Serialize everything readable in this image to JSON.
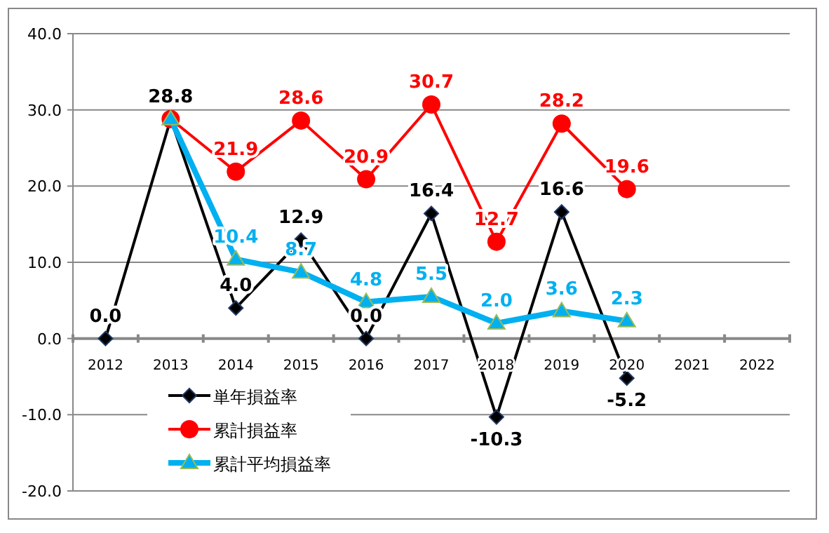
{
  "chart_data": {
    "type": "line",
    "categories": [
      "2012",
      "2013",
      "2014",
      "2015",
      "2016",
      "2017",
      "2018",
      "2019",
      "2020",
      "2021",
      "2022"
    ],
    "series": [
      {
        "name": "単年損益率",
        "color": "#000000",
        "marker": "diamond",
        "values": [
          0.0,
          28.8,
          4.0,
          12.9,
          0.0,
          16.4,
          -10.3,
          16.6,
          -5.2,
          null,
          null
        ],
        "value_labels": [
          "0.0",
          "28.8",
          "4.0",
          "12.9",
          "0.0",
          "16.4",
          "-10.3",
          "16.6",
          "-5.2",
          null,
          null
        ]
      },
      {
        "name": "累計損益率",
        "color": "#ff0000",
        "marker": "circle",
        "values": [
          null,
          28.8,
          21.9,
          28.6,
          20.9,
          30.7,
          12.7,
          28.2,
          19.6,
          null,
          null
        ],
        "value_labels": [
          null,
          null,
          "21.9",
          "28.6",
          "20.9",
          "30.7",
          "12.7",
          "28.2",
          "19.6",
          null,
          null
        ]
      },
      {
        "name": "累計平均損益率",
        "color": "#00b0f0",
        "marker": "triangle",
        "values": [
          null,
          28.8,
          10.4,
          8.7,
          4.8,
          5.5,
          2.0,
          3.6,
          2.3,
          null,
          null
        ],
        "value_labels": [
          null,
          null,
          "10.4",
          "8.7",
          "4.8",
          "5.5",
          "2.0",
          "3.6",
          "2.3",
          null,
          null
        ]
      }
    ],
    "ylim": [
      -20,
      40
    ],
    "yticks": [
      {
        "value": -20,
        "label": "-20.0"
      },
      {
        "value": -10,
        "label": "-10.0"
      },
      {
        "value": 0,
        "label": "0.0"
      },
      {
        "value": 10,
        "label": "10.0"
      },
      {
        "value": 20,
        "label": "20.0"
      },
      {
        "value": 30,
        "label": "30.0"
      },
      {
        "value": 40,
        "label": "40.0"
      }
    ],
    "grid": "y",
    "legend": "bottom left"
  }
}
